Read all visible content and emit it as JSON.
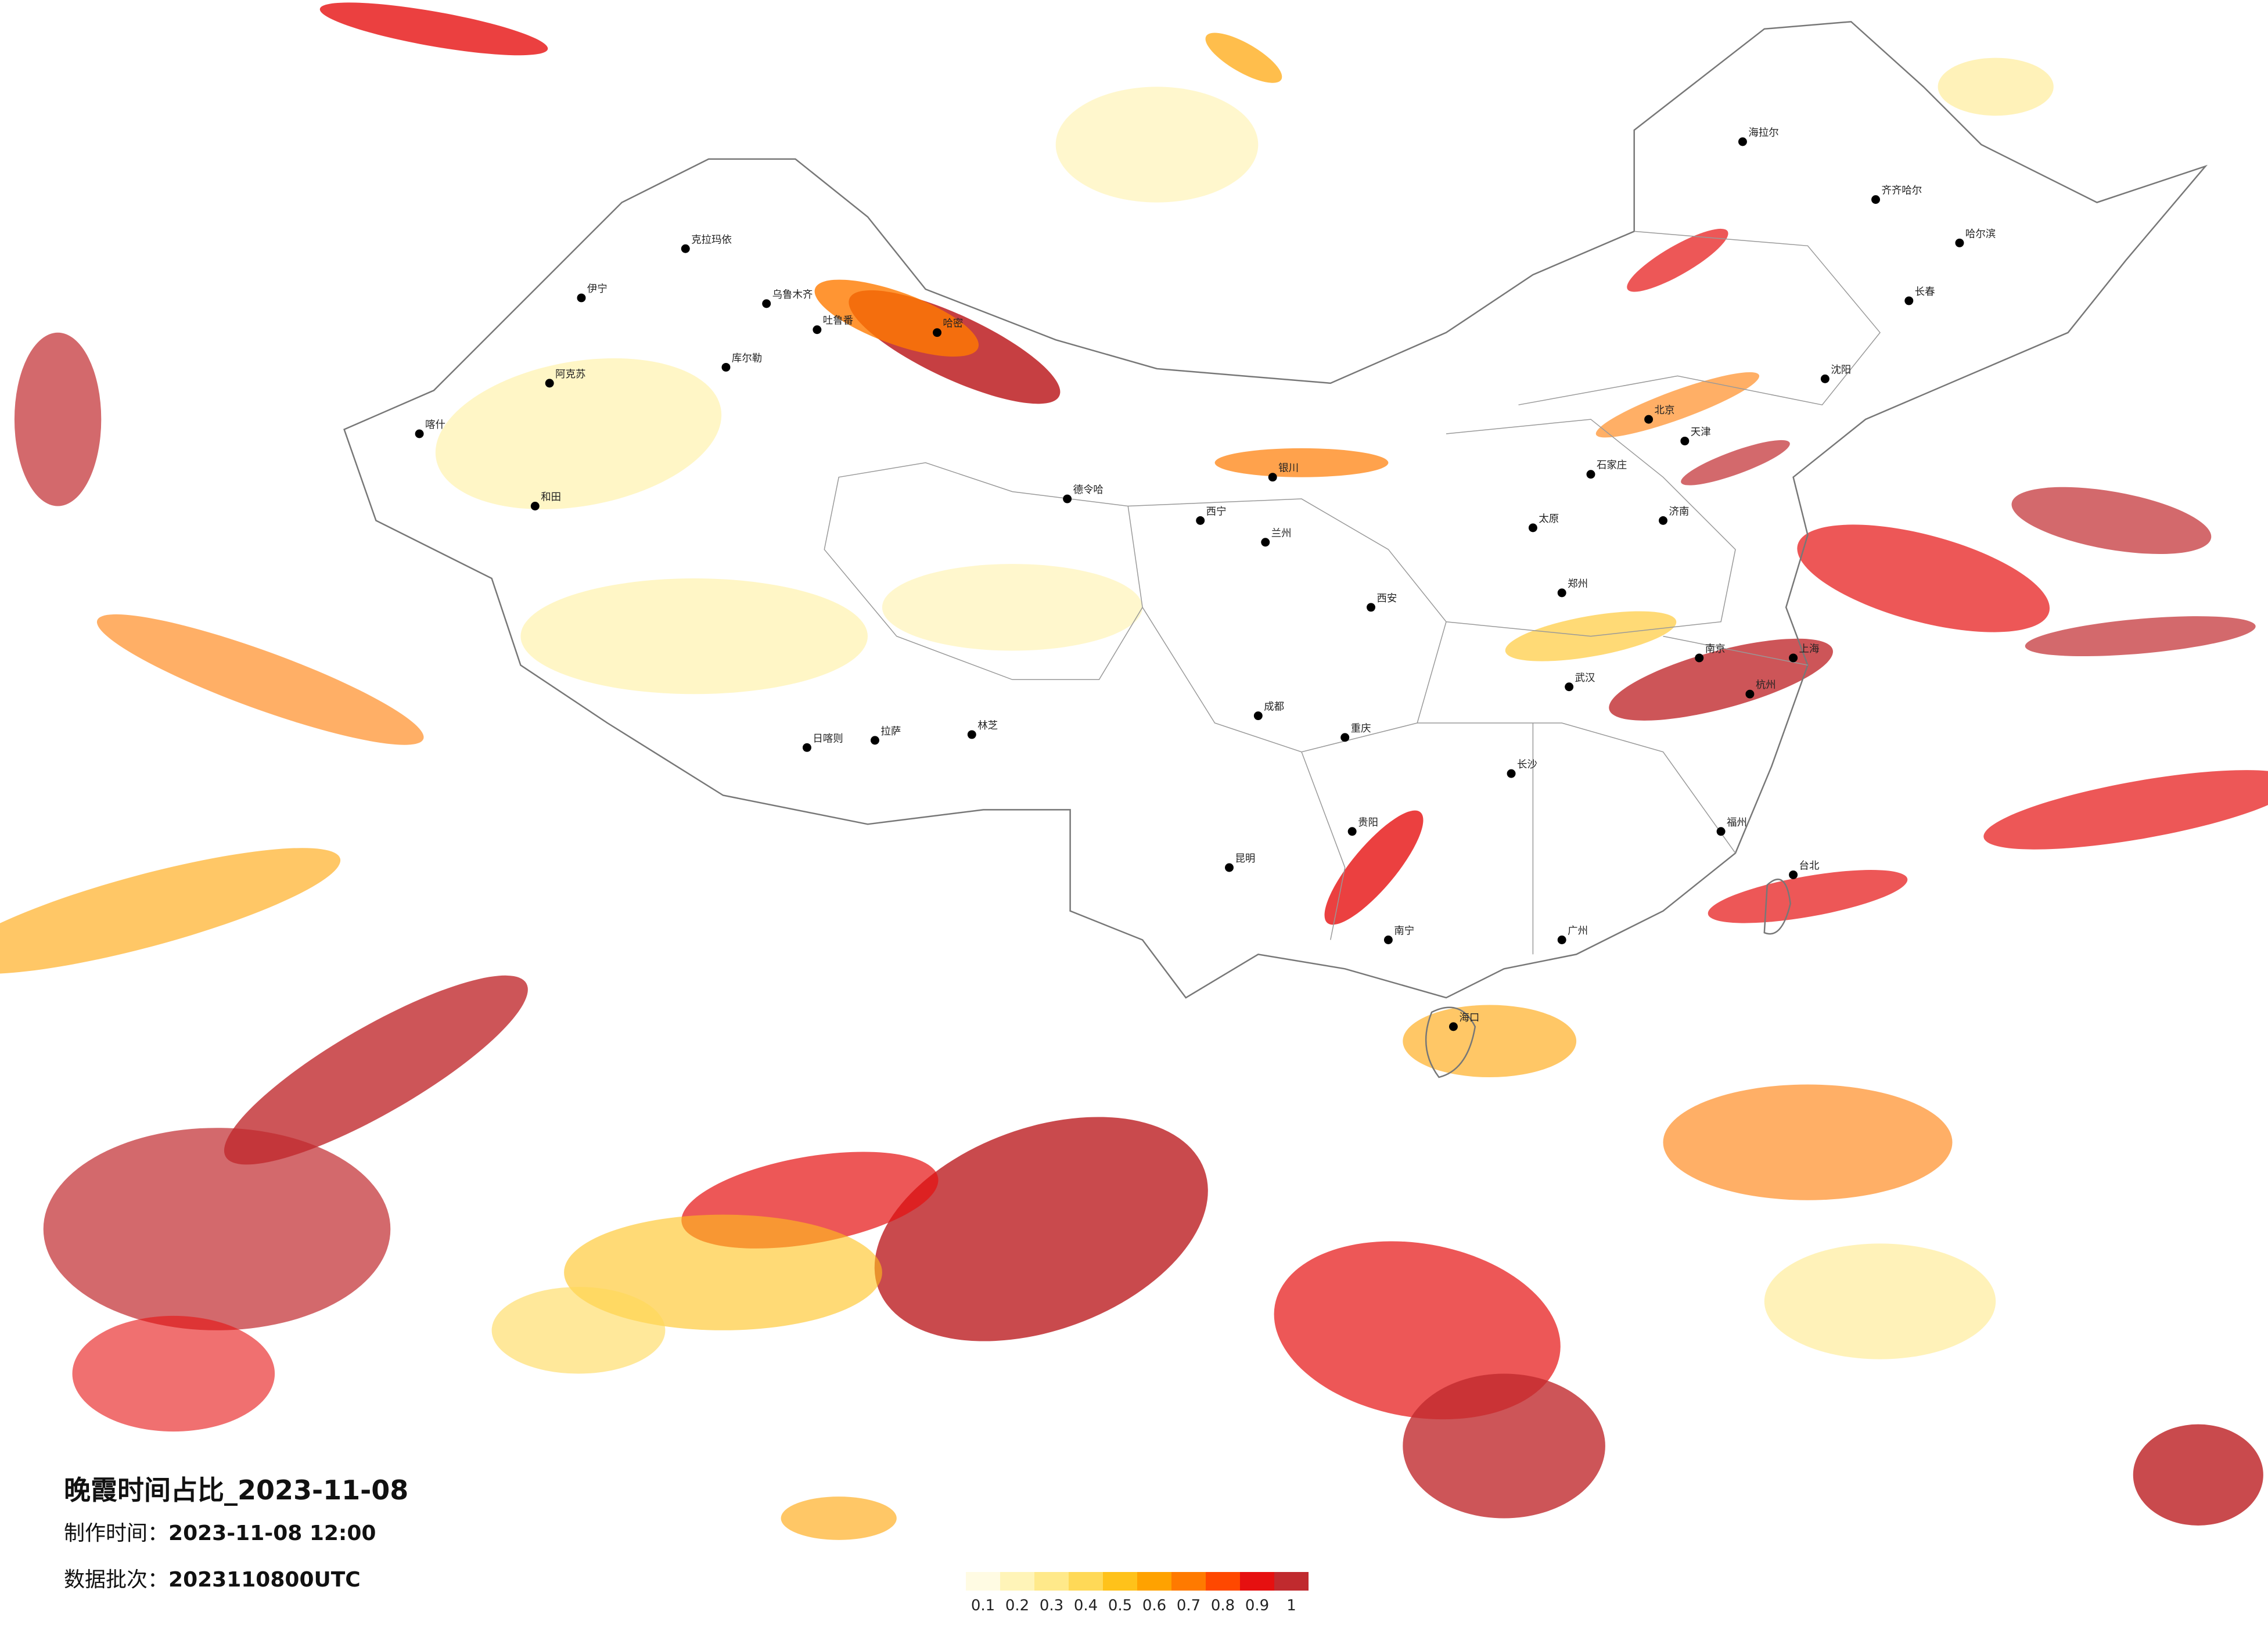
{
  "title": "晚霞时间占比_2023-11-08",
  "info": [
    {
      "label": "制作时间：",
      "value": "2023-11-08 12:00"
    },
    {
      "label": "数据批次：",
      "value": "2023110800UTC"
    }
  ],
  "colorbar": {
    "colors": [
      "#fffbe3",
      "#fff4b8",
      "#ffe98a",
      "#ffd957",
      "#ffc21a",
      "#ffa200",
      "#ff7a00",
      "#ff4800",
      "#e61010",
      "#c02a2e"
    ],
    "ticks": [
      0.1,
      0.2,
      0.3,
      0.4,
      0.5,
      0.6,
      0.7,
      0.8,
      0.9,
      1
    ]
  },
  "cities": [
    {
      "name": "克拉玛依"
    },
    {
      "name": "伊宁"
    },
    {
      "name": "阿克苏"
    },
    {
      "name": "喀什"
    },
    {
      "name": "和田"
    },
    {
      "name": "库尔勒"
    },
    {
      "name": "哈密"
    },
    {
      "name": "吐鲁番"
    },
    {
      "name": "乌鲁木齐"
    },
    {
      "name": "德令哈"
    },
    {
      "name": "拉萨"
    },
    {
      "name": "日喀则"
    },
    {
      "name": "林芝"
    },
    {
      "name": "海拉尔"
    },
    {
      "name": "齐齐哈尔"
    },
    {
      "name": "哈尔滨"
    },
    {
      "name": "长春"
    },
    {
      "name": "沈阳"
    },
    {
      "name": "北京"
    },
    {
      "name": "天津"
    },
    {
      "name": "石家庄"
    },
    {
      "name": "太原"
    },
    {
      "name": "西安"
    },
    {
      "name": "兰州"
    },
    {
      "name": "西宁"
    },
    {
      "name": "银川"
    },
    {
      "name": "成都"
    },
    {
      "name": "重庆"
    },
    {
      "name": "贵阳"
    },
    {
      "name": "昆明"
    },
    {
      "name": "南宁"
    },
    {
      "name": "广州"
    },
    {
      "name": "福州"
    },
    {
      "name": "杭州"
    },
    {
      "name": "上海"
    },
    {
      "name": "南京"
    },
    {
      "name": "武汉"
    },
    {
      "name": "长沙"
    },
    {
      "name": "郑州"
    },
    {
      "name": "济南"
    },
    {
      "name": "海口"
    },
    {
      "name": "台北"
    }
  ]
}
